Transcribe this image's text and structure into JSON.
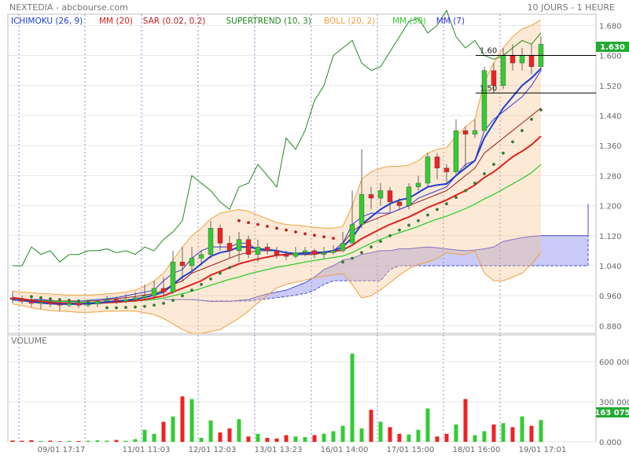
{
  "header": {
    "title": "NEXTEDIA - abcbourse.com",
    "period": "10 JOURS - 1 HEURE"
  },
  "legend": [
    {
      "label": "ICHIMOKU (26, 9)",
      "color": "#1e3fcf"
    },
    {
      "label": "MM (20)",
      "color": "#e02020"
    },
    {
      "label": "SAR (0.02, 0.2)",
      "color": "#c02020"
    },
    {
      "label": "SUPERTREND (10, 3)",
      "color": "#1f8a1f"
    },
    {
      "label": "BOLL (20, 2)",
      "color": "#f0a040"
    },
    {
      "label": "MM (30)",
      "color": "#33cc33"
    },
    {
      "label": "MM (7)",
      "color": "#3333ee"
    }
  ],
  "annotations": [
    {
      "label": "1.60",
      "value": 1.6
    },
    {
      "label": "1.50",
      "value": 1.5
    }
  ],
  "price_badge": "1.630",
  "volume_label": "VOLUME",
  "volume_badge": "163 075",
  "colors": {
    "up": "#33cc33",
    "down": "#ee2222",
    "badge": "#22aa33",
    "grid": "#e6e6e6"
  },
  "chart_data": {
    "type": "candlestick",
    "price_axis": {
      "ylim": [
        0.86,
        1.71
      ],
      "ticks": [
        "0.880",
        "0.960",
        "1.040",
        "1.120",
        "1.200",
        "1.280",
        "1.360",
        "1.440",
        "1.520",
        "1.600",
        "1.680"
      ]
    },
    "volume_axis": {
      "ylim": [
        0,
        800000
      ],
      "ticks": [
        "0.000",
        "300 000",
        "600 000"
      ],
      "tick_values": [
        0,
        300000,
        600000
      ]
    },
    "x_labels": [
      {
        "label": "09/01 17:17",
        "index": 5
      },
      {
        "label": "11/01 11:03",
        "index": 14
      },
      {
        "label": "12/01 12:03",
        "index": 21
      },
      {
        "label": "13/01 13:23",
        "index": 28
      },
      {
        "label": "16/01 14:00",
        "index": 35
      },
      {
        "label": "17/01 15:00",
        "index": 42
      },
      {
        "label": "18/01 16:00",
        "index": 49
      },
      {
        "label": "19/01 17:01",
        "index": 56
      }
    ],
    "day_separators": [
      0,
      7,
      13,
      19,
      25,
      31,
      38,
      45,
      51
    ],
    "candles": [
      [
        0.955,
        0.95,
        0.972,
        0.94
      ],
      [
        0.95,
        0.945,
        0.96,
        0.938
      ],
      [
        0.945,
        0.94,
        0.955,
        0.93
      ],
      [
        0.94,
        0.942,
        0.95,
        0.925
      ],
      [
        0.942,
        0.938,
        0.948,
        0.93
      ],
      [
        0.938,
        0.935,
        0.945,
        0.92
      ],
      [
        0.935,
        0.94,
        0.948,
        0.93
      ],
      [
        0.94,
        0.935,
        0.95,
        0.928
      ],
      [
        0.935,
        0.938,
        0.945,
        0.93
      ],
      [
        0.938,
        0.945,
        0.95,
        0.93
      ],
      [
        0.945,
        0.95,
        0.96,
        0.94
      ],
      [
        0.95,
        0.945,
        0.958,
        0.938
      ],
      [
        0.945,
        0.95,
        0.965,
        0.94
      ],
      [
        0.95,
        0.955,
        0.97,
        0.945
      ],
      [
        0.955,
        0.96,
        0.99,
        0.95
      ],
      [
        0.96,
        0.98,
        1.0,
        0.95
      ],
      [
        0.98,
        0.97,
        1.01,
        0.96
      ],
      [
        0.97,
        1.05,
        1.08,
        0.965
      ],
      [
        1.05,
        1.04,
        1.09,
        1.0
      ],
      [
        1.04,
        1.06,
        1.09,
        1.02
      ],
      [
        1.06,
        1.07,
        1.08,
        1.04
      ],
      [
        1.07,
        1.14,
        1.16,
        1.06
      ],
      [
        1.14,
        1.1,
        1.15,
        1.08
      ],
      [
        1.1,
        1.08,
        1.12,
        1.06
      ],
      [
        1.08,
        1.11,
        1.13,
        1.05
      ],
      [
        1.11,
        1.07,
        1.12,
        1.06
      ],
      [
        1.07,
        1.09,
        1.11,
        1.05
      ],
      [
        1.09,
        1.08,
        1.1,
        1.07
      ],
      [
        1.08,
        1.07,
        1.09,
        1.06
      ],
      [
        1.07,
        1.065,
        1.08,
        1.055
      ],
      [
        1.065,
        1.075,
        1.09,
        1.06
      ],
      [
        1.075,
        1.08,
        1.09,
        1.065
      ],
      [
        1.08,
        1.07,
        1.085,
        1.06
      ],
      [
        1.07,
        1.075,
        1.09,
        1.06
      ],
      [
        1.075,
        1.08,
        1.095,
        1.07
      ],
      [
        1.08,
        1.1,
        1.13,
        1.075
      ],
      [
        1.1,
        1.15,
        1.24,
        1.1
      ],
      [
        1.15,
        1.23,
        1.35,
        1.14
      ],
      [
        1.23,
        1.22,
        1.25,
        1.19
      ],
      [
        1.22,
        1.24,
        1.26,
        1.2
      ],
      [
        1.24,
        1.21,
        1.25,
        1.18
      ],
      [
        1.21,
        1.2,
        1.22,
        1.19
      ],
      [
        1.2,
        1.25,
        1.26,
        1.19
      ],
      [
        1.25,
        1.26,
        1.28,
        1.24
      ],
      [
        1.26,
        1.33,
        1.34,
        1.25
      ],
      [
        1.33,
        1.3,
        1.34,
        1.27
      ],
      [
        1.3,
        1.29,
        1.31,
        1.26
      ],
      [
        1.29,
        1.4,
        1.43,
        1.28
      ],
      [
        1.4,
        1.39,
        1.41,
        1.3
      ],
      [
        1.39,
        1.4,
        1.43,
        1.38
      ],
      [
        1.4,
        1.56,
        1.57,
        1.4
      ],
      [
        1.56,
        1.52,
        1.58,
        1.5
      ],
      [
        1.52,
        1.6,
        1.62,
        1.51
      ],
      [
        1.6,
        1.58,
        1.63,
        1.56
      ],
      [
        1.58,
        1.6,
        1.62,
        1.56
      ],
      [
        1.6,
        1.57,
        1.63,
        1.55
      ],
      [
        1.57,
        1.63,
        1.65,
        1.56
      ]
    ],
    "volumes": [
      10000,
      8000,
      12000,
      6000,
      9000,
      5000,
      7000,
      6000,
      8000,
      11000,
      9000,
      14000,
      8000,
      20000,
      90000,
      60000,
      150000,
      190000,
      340000,
      320000,
      30000,
      160000,
      70000,
      100000,
      170000,
      40000,
      60000,
      30000,
      25000,
      50000,
      40000,
      35000,
      50000,
      60000,
      80000,
      120000,
      660000,
      100000,
      240000,
      150000,
      110000,
      60000,
      55000,
      90000,
      250000,
      40000,
      60000,
      130000,
      320000,
      50000,
      80000,
      130000,
      140000,
      110000,
      190000,
      120000,
      163075
    ],
    "mm20": [
      0.955,
      0.952,
      0.948,
      0.945,
      0.943,
      0.941,
      0.94,
      0.939,
      0.939,
      0.94,
      0.942,
      0.943,
      0.945,
      0.947,
      0.95,
      0.955,
      0.96,
      0.97,
      0.98,
      0.99,
      1.0,
      1.015,
      1.025,
      1.035,
      1.045,
      1.052,
      1.058,
      1.063,
      1.068,
      1.07,
      1.072,
      1.074,
      1.075,
      1.076,
      1.078,
      1.082,
      1.095,
      1.112,
      1.125,
      1.138,
      1.15,
      1.16,
      1.17,
      1.182,
      1.195,
      1.205,
      1.215,
      1.228,
      1.24,
      1.255,
      1.275,
      1.29,
      1.31,
      1.33,
      1.345,
      1.362,
      1.385
    ],
    "mm7": [
      0.95,
      0.948,
      0.944,
      0.941,
      0.939,
      0.938,
      0.938,
      0.938,
      0.939,
      0.941,
      0.944,
      0.946,
      0.948,
      0.951,
      0.956,
      0.962,
      0.97,
      0.99,
      1.01,
      1.025,
      1.045,
      1.065,
      1.075,
      1.08,
      1.09,
      1.09,
      1.085,
      1.083,
      1.08,
      1.075,
      1.072,
      1.074,
      1.075,
      1.076,
      1.08,
      1.09,
      1.115,
      1.15,
      1.17,
      1.19,
      1.205,
      1.215,
      1.22,
      1.235,
      1.25,
      1.255,
      1.258,
      1.28,
      1.3,
      1.32,
      1.38,
      1.42,
      1.46,
      1.49,
      1.52,
      1.54,
      1.565
    ],
    "mm30": [
      0.95,
      0.949,
      0.948,
      0.947,
      0.946,
      0.945,
      0.944,
      0.943,
      0.942,
      0.942,
      0.943,
      0.944,
      0.945,
      0.946,
      0.948,
      0.95,
      0.954,
      0.96,
      0.966,
      0.972,
      0.98,
      0.988,
      0.996,
      1.004,
      1.01,
      1.018,
      1.024,
      1.03,
      1.036,
      1.04,
      1.045,
      1.05,
      1.054,
      1.058,
      1.062,
      1.066,
      1.075,
      1.088,
      1.1,
      1.11,
      1.12,
      1.128,
      1.136,
      1.145,
      1.155,
      1.164,
      1.172,
      1.182,
      1.192,
      1.204,
      1.218,
      1.23,
      1.244,
      1.258,
      1.272,
      1.288,
      1.31
    ],
    "boll_upper": [
      0.972,
      0.97,
      0.968,
      0.966,
      0.965,
      0.963,
      0.962,
      0.962,
      0.962,
      0.963,
      0.965,
      0.967,
      0.97,
      0.975,
      0.985,
      1.0,
      1.02,
      1.055,
      1.09,
      1.12,
      1.14,
      1.165,
      1.18,
      1.185,
      1.19,
      1.185,
      1.175,
      1.165,
      1.155,
      1.15,
      1.148,
      1.146,
      1.142,
      1.14,
      1.14,
      1.145,
      1.2,
      1.27,
      1.29,
      1.3,
      1.305,
      1.305,
      1.308,
      1.32,
      1.34,
      1.35,
      1.355,
      1.385,
      1.41,
      1.43,
      1.53,
      1.58,
      1.62,
      1.65,
      1.67,
      1.68,
      1.695
    ],
    "boll_lower": [
      0.938,
      0.934,
      0.928,
      0.924,
      0.921,
      0.919,
      0.918,
      0.916,
      0.916,
      0.917,
      0.919,
      0.919,
      0.92,
      0.919,
      0.915,
      0.91,
      0.9,
      0.885,
      0.87,
      0.86,
      0.86,
      0.865,
      0.87,
      0.885,
      0.9,
      0.919,
      0.941,
      0.961,
      0.981,
      0.99,
      0.996,
      1.002,
      1.008,
      1.012,
      1.016,
      1.019,
      0.99,
      0.954,
      0.96,
      0.976,
      0.995,
      1.015,
      1.032,
      1.044,
      1.05,
      1.06,
      1.075,
      1.071,
      1.07,
      1.08,
      1.02,
      1.0,
      1.0,
      1.01,
      1.02,
      1.044,
      1.075
    ],
    "sar": [
      null,
      null,
      0.958,
      0.955,
      0.952,
      0.95,
      0.948,
      0.946,
      0.945,
      0.944,
      0.928,
      0.928,
      0.929,
      0.93,
      0.932,
      0.935,
      0.94,
      0.948,
      0.96,
      0.975,
      0.99,
      1.005,
      1.02,
      1.035,
      1.16,
      1.155,
      1.15,
      1.145,
      1.14,
      1.135,
      1.13,
      1.125,
      1.121,
      1.117,
      1.113,
      1.05,
      1.06,
      1.075,
      1.09,
      1.105,
      1.12,
      1.135,
      1.148,
      1.16,
      1.175,
      1.19,
      1.205,
      1.222,
      1.24,
      1.26,
      1.285,
      1.31,
      1.34,
      1.37,
      1.4,
      1.43,
      1.455
    ],
    "supertrend": [
      1.04,
      1.04,
      1.09,
      1.07,
      1.08,
      1.05,
      1.07,
      1.07,
      1.08,
      1.08,
      1.085,
      1.075,
      1.08,
      1.07,
      1.09,
      1.08,
      1.11,
      1.13,
      1.16,
      1.28,
      1.26,
      1.24,
      1.21,
      1.19,
      1.25,
      1.26,
      1.31,
      1.28,
      1.25,
      1.38,
      1.35,
      1.4,
      1.48,
      1.52,
      1.6,
      1.62,
      1.64,
      1.58,
      1.56,
      1.57,
      1.61,
      1.65,
      1.69,
      1.7,
      1.66,
      1.68,
      1.72,
      1.65,
      1.62,
      1.64,
      1.6,
      1.59,
      1.6,
      1.62,
      1.64,
      1.63,
      1.66
    ],
    "ichimoku_tenkan": [
      0.95,
      0.95,
      0.95,
      0.95,
      0.948,
      0.945,
      0.945,
      0.945,
      0.948,
      0.95,
      0.952,
      0.955,
      0.96,
      0.965,
      0.97,
      0.975,
      1.0,
      1.02,
      1.03,
      1.06,
      1.08,
      1.09,
      1.09,
      1.09,
      1.1,
      1.1,
      1.08,
      1.08,
      1.08,
      1.075,
      1.07,
      1.07,
      1.075,
      1.075,
      1.08,
      1.1,
      1.15,
      1.17,
      1.18,
      1.18,
      1.18,
      1.19,
      1.2,
      1.22,
      1.23,
      1.24,
      1.25,
      1.28,
      1.31,
      1.32,
      1.4,
      1.43,
      1.45,
      1.47,
      1.49,
      1.52,
      1.56
    ],
    "ichimoku_kijun": [
      0.95,
      0.95,
      0.95,
      0.95,
      0.948,
      0.946,
      0.946,
      0.946,
      0.946,
      0.946,
      0.95,
      0.952,
      0.955,
      0.958,
      0.962,
      0.966,
      0.975,
      0.99,
      1.0,
      1.02,
      1.03,
      1.04,
      1.05,
      1.06,
      1.07,
      1.075,
      1.08,
      1.08,
      1.08,
      1.075,
      1.07,
      1.07,
      1.07,
      1.075,
      1.08,
      1.1,
      1.13,
      1.15,
      1.16,
      1.17,
      1.18,
      1.19,
      1.2,
      1.21,
      1.22,
      1.23,
      1.24,
      1.26,
      1.28,
      1.3,
      1.34,
      1.36,
      1.38,
      1.4,
      1.42,
      1.44,
      1.46
    ],
    "cloud": {
      "start_index": 16,
      "span_a": [
        0.95,
        0.95,
        0.95,
        0.95,
        0.948,
        0.945,
        0.945,
        0.945,
        0.948,
        0.95,
        0.958,
        0.965,
        0.97,
        0.975,
        0.985,
        0.995,
        1.01,
        1.03,
        1.04,
        1.055,
        1.06,
        1.07,
        1.075,
        1.08,
        1.08,
        1.085,
        1.085,
        1.088,
        1.09,
        1.088,
        1.085,
        1.082,
        1.08,
        1.082,
        1.085,
        1.09,
        1.105,
        1.11,
        1.115,
        1.118,
        1.12,
        1.12,
        1.12,
        1.12,
        1.12,
        1.12,
        1.12,
        1.2,
        1.2,
        1.2,
        1.2,
        1.2,
        1.205,
        1.205,
        1.205,
        1.205,
        1.205,
        1.205,
        1.205,
        1.205,
        1.205,
        1.205,
        1.205,
        1.205,
        1.205,
        1.205
      ],
      "span_b": [
        0.95,
        0.95,
        0.95,
        0.95,
        0.948,
        0.946,
        0.946,
        0.946,
        0.946,
        0.946,
        0.95,
        0.952,
        0.955,
        0.958,
        0.962,
        0.966,
        0.975,
        0.99,
        1.0,
        1.0,
        1.0,
        1.0,
        1.0,
        1.0,
        1.03,
        1.04,
        1.04,
        1.04,
        1.04,
        1.04,
        1.04,
        1.04,
        1.04,
        1.04,
        1.04,
        1.04,
        1.04,
        1.04,
        1.04,
        1.04,
        1.04,
        1.04,
        1.04,
        1.04,
        1.04,
        1.04,
        1.04,
        1.13,
        1.13,
        1.13,
        1.13,
        1.13,
        1.13,
        1.13,
        1.13,
        1.13,
        1.13,
        1.13,
        1.13,
        1.13,
        1.13,
        1.13,
        1.13,
        1.13,
        1.13,
        1.13
      ]
    }
  }
}
